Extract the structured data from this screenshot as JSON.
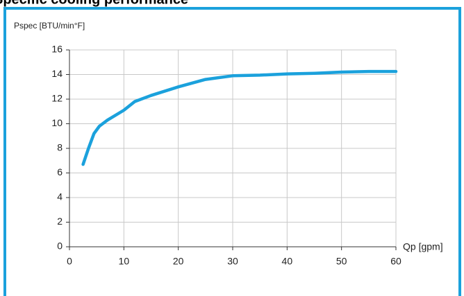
{
  "chart_data": {
    "type": "line",
    "title": "Specific cooling performance",
    "y_label": "Pspec [BTU/min°F]",
    "x_label": "Qp [gpm]",
    "x": [
      2.5,
      3.5,
      4.5,
      5.5,
      7,
      10,
      12,
      15,
      20,
      25,
      30,
      35,
      40,
      45,
      50,
      55,
      60
    ],
    "series": [
      {
        "name": "Pspec",
        "color": "#1ba1dc",
        "values": [
          6.7,
          8,
          9.2,
          9.8,
          10.3,
          11.1,
          11.8,
          12.3,
          13,
          13.6,
          13.9,
          13.95,
          14.05,
          14.1,
          14.2,
          14.25,
          14.25
        ]
      }
    ],
    "xlim": [
      0,
      60
    ],
    "xticks": [
      0,
      10,
      20,
      30,
      40,
      50,
      60
    ],
    "ylim": [
      0,
      16
    ],
    "yticks": [
      0,
      2,
      4,
      6,
      8,
      10,
      12,
      14,
      16
    ],
    "grid": true
  }
}
